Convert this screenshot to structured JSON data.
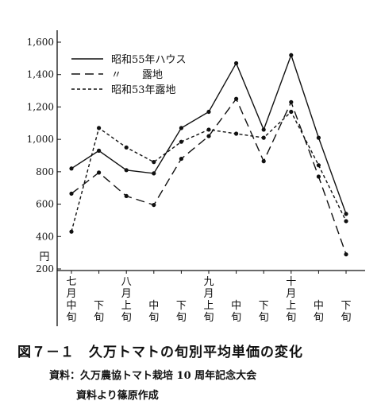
{
  "chart_data": {
    "type": "line",
    "title": "",
    "xlabel": "",
    "ylabel": "円",
    "ylim": [
      200,
      1600
    ],
    "yticks": [
      200,
      400,
      600,
      800,
      1000,
      1200,
      1400,
      1600
    ],
    "ytick_labels": [
      "200",
      "400",
      "600",
      "800",
      "1,000",
      "1,200",
      "1,400",
      "1,600"
    ],
    "categories": [
      "七月中旬",
      "下旬",
      "八月上旬",
      "中旬",
      "下旬",
      "九月上旬",
      "中旬",
      "下旬",
      "十月上旬",
      "中旬",
      "下旬"
    ],
    "series": [
      {
        "name": "昭和55年ハウス",
        "style": "solid",
        "values": [
          820,
          930,
          810,
          790,
          1070,
          1170,
          1470,
          1060,
          1520,
          1010,
          540
        ]
      },
      {
        "name": "〃　　露地",
        "style": "long-dash",
        "values": [
          665,
          795,
          650,
          595,
          880,
          1020,
          1250,
          865,
          1230,
          770,
          290
        ]
      },
      {
        "name": "昭和53年露地",
        "style": "short-dash",
        "values": [
          430,
          1070,
          950,
          860,
          985,
          1060,
          1035,
          1010,
          1170,
          840,
          495
        ]
      }
    ],
    "grid": false,
    "legend_position": "top-left"
  },
  "caption": {
    "title": "図７－１　久万トマトの旬別平均単価の変化",
    "source_line1": "資料：久万農協トマト栽培 10 周年記念大会",
    "source_line2": "資料より篠原作成"
  },
  "colors": {
    "ink": "#111111",
    "background": "#ffffff"
  }
}
